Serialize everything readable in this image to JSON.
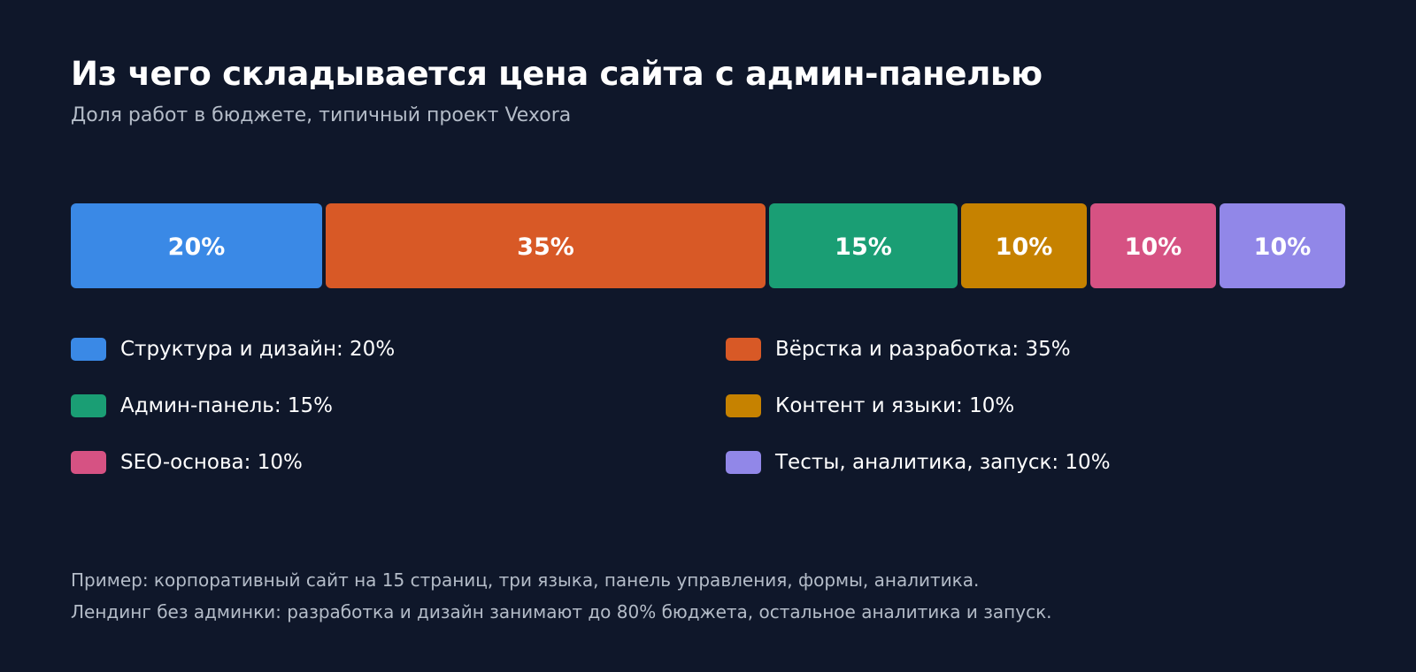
{
  "title": "Из чего складывается цена сайта с админ-панелью",
  "subtitle": "Доля работ в бюджете, типичный проект Vexora",
  "chart_data": {
    "type": "bar",
    "orientation": "horizontal-stacked-100",
    "title": "Из чего складывается цена сайта с админ-панелью",
    "subtitle": "Доля работ в бюджете, типичный проект Vexora",
    "categories": [
      "Структура и дизайн",
      "Вёрстка и разработка",
      "Админ-панель",
      "Контент и языки",
      "SEO-основа",
      "Тесты, аналитика, запуск"
    ],
    "values": [
      20,
      35,
      15,
      10,
      10,
      10
    ],
    "unit": "%",
    "colors": [
      "#3a89e6",
      "#d85926",
      "#1a9e74",
      "#c68200",
      "#d65283",
      "#9187e8"
    ],
    "data_labels": [
      "20%",
      "35%",
      "15%",
      "10%",
      "10%",
      "10%"
    ],
    "legend": {
      "position": "bottom",
      "columns": 2,
      "entries": [
        "Структура и дизайн: 20%",
        "Вёрстка и разработка: 35%",
        "Админ-панель: 15%",
        "Контент и языки: 10%",
        "SEO-основа: 10%",
        "Тесты, аналитика, запуск: 10%"
      ]
    },
    "grid": false
  },
  "notes": [
    "Пример: корпоративный сайт на 15 страниц, три языка, панель управления, формы, аналитика.",
    "Лендинг без админки: разработка и дизайн занимают до 80% бюджета, остальное аналитика и запуск."
  ]
}
